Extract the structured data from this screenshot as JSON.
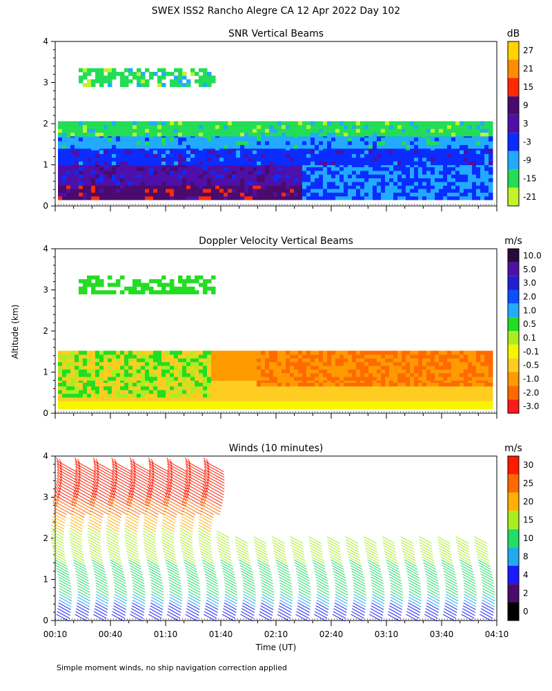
{
  "figure": {
    "title": "SWEX ISS2 Rancho Alegre CA  12 Apr 2022 Day 102",
    "ylabel": "Altitude (km)",
    "xlabel": "Time (UT)",
    "footnote": "Simple moment winds, no ship navigation correction applied"
  },
  "chart_data": [
    {
      "type": "heatmap",
      "title": "SNR Vertical Beams",
      "ylabel": "Altitude (km)",
      "ylim": [
        0,
        4
      ],
      "y_ticks": [
        "0",
        "1",
        "2",
        "3",
        "4"
      ],
      "x_range_hours": [
        0.1667,
        4.1667
      ],
      "colorbar": {
        "unit": "dB",
        "labels": [
          "27",
          "21",
          "15",
          "9",
          "3",
          "-3",
          "-9",
          "-15",
          "-21"
        ],
        "colors": [
          "#ffd400",
          "#ff8c00",
          "#ff2a00",
          "#4a0a6e",
          "#4e10a8",
          "#0a2cff",
          "#22aaff",
          "#22dd55",
          "#bff529"
        ]
      },
      "layers": [
        {
          "alt_km": [
            0.15,
            0.5
          ],
          "level_db": 9
        },
        {
          "alt_km": [
            0.5,
            1.0
          ],
          "level_db": 3
        },
        {
          "alt_km": [
            1.0,
            1.4
          ],
          "level_db": -3
        },
        {
          "alt_km": [
            1.4,
            1.7
          ],
          "level_db": -9
        },
        {
          "alt_km": [
            1.7,
            2.0
          ],
          "level_db": -15
        },
        {
          "alt_km": [
            2.9,
            3.3
          ],
          "level_db": -15
        }
      ]
    },
    {
      "type": "heatmap",
      "title": "Doppler Velocity Vertical Beams",
      "ylabel": "Altitude (km)",
      "ylim": [
        0,
        4
      ],
      "y_ticks": [
        "0",
        "1",
        "2",
        "3",
        "4"
      ],
      "x_range_hours": [
        0.1667,
        4.1667
      ],
      "colorbar": {
        "unit": "m/s",
        "labels": [
          "10.0",
          "5.0",
          "3.0",
          "2.0",
          "1.0",
          "0.5",
          "0.1",
          "-0.1",
          "-0.5",
          "-1.0",
          "-2.0",
          "-3.0"
        ],
        "colors": [
          "#2a0a3e",
          "#4e10a8",
          "#2020d0",
          "#0a50ff",
          "#22aaff",
          "#22dd22",
          "#aaee22",
          "#f5f500",
          "#ffcc22",
          "#ff9a00",
          "#ff6a00",
          "#ff1a1a"
        ]
      },
      "layers": [
        {
          "alt_km": [
            0.1,
            0.3
          ],
          "level_ms": -0.1
        },
        {
          "alt_km": [
            0.3,
            0.8
          ],
          "level_ms": -0.5
        },
        {
          "alt_km": [
            0.8,
            1.5
          ],
          "level_ms": -1.0
        },
        {
          "alt_km": [
            2.9,
            3.3
          ],
          "level_ms": 0.5
        }
      ]
    },
    {
      "type": "scatter",
      "title": "Winds (10 minutes)",
      "ylabel": "Altitude (km)",
      "xlabel": "Time (UT)",
      "ylim": [
        0,
        4
      ],
      "y_ticks": [
        "0",
        "1",
        "2",
        "3",
        "4"
      ],
      "x_range_hours": [
        0.1667,
        4.1667
      ],
      "x_tick_labels": [
        "00:10",
        "00:40",
        "01:10",
        "01:40",
        "02:10",
        "02:40",
        "03:10",
        "03:40",
        "04:10"
      ],
      "profile_times_hours": [
        0.1667,
        0.3333,
        0.5,
        0.6667,
        0.8333,
        1.0,
        1.1667,
        1.3333,
        1.5,
        1.6667,
        1.8333,
        2.0,
        2.1667,
        2.3333,
        2.5,
        2.6667,
        2.8333,
        3.0,
        3.1667,
        3.3333,
        3.5,
        3.6667,
        3.8333,
        4.0
      ],
      "colorbar": {
        "unit": "m/s",
        "labels": [
          "30",
          "25",
          "20",
          "15",
          "10",
          "8",
          "4",
          "2",
          "0"
        ],
        "colors": [
          "#ff1a00",
          "#ff6a00",
          "#ffb000",
          "#aaee22",
          "#22dd66",
          "#22aaee",
          "#1a1aff",
          "#4a0a6e",
          "#000000"
        ]
      },
      "wind_speed_by_altitude": [
        {
          "alt_km": 0.3,
          "speed_ms": 6
        },
        {
          "alt_km": 0.8,
          "speed_ms": 11
        },
        {
          "alt_km": 1.5,
          "speed_ms": 15
        },
        {
          "alt_km": 2.2,
          "speed_ms": 19
        },
        {
          "alt_km": 3.0,
          "speed_ms": 30
        },
        {
          "alt_km": 3.8,
          "speed_ms": 33
        }
      ]
    }
  ]
}
